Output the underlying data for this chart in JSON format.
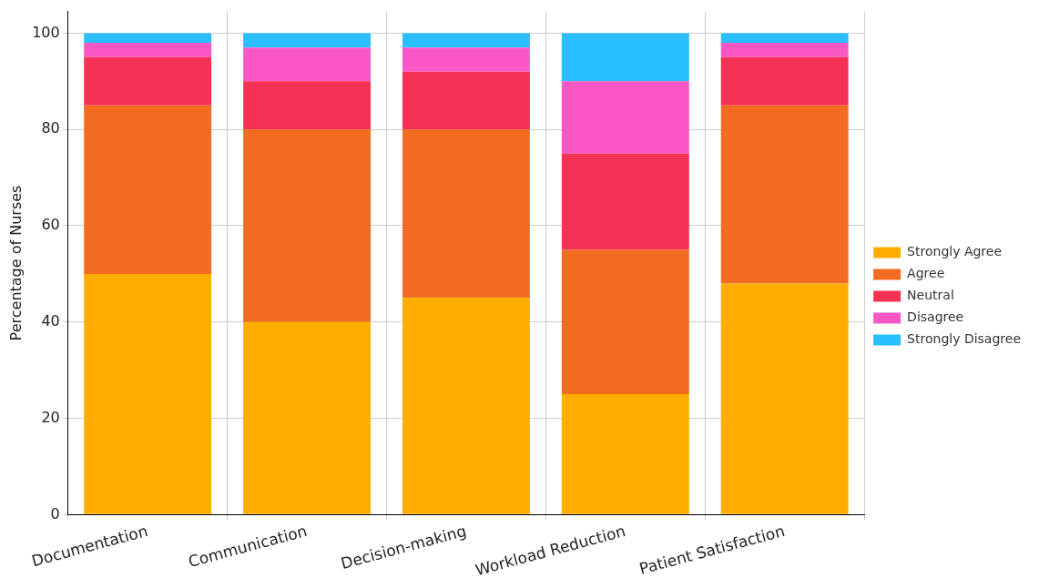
{
  "chart_data": {
    "type": "bar",
    "stacked": true,
    "ylabel": "Percentage of Nurses",
    "categories": [
      "Documentation",
      "Communication",
      "Decision-making",
      "Workload Reduction",
      "Patient Satisfaction"
    ],
    "series": [
      {
        "name": "Strongly Agree",
        "color": "#ffae00",
        "values": [
          50,
          40,
          45,
          25,
          48
        ]
      },
      {
        "name": "Agree",
        "color": "#f26b21",
        "values": [
          35,
          40,
          35,
          30,
          37
        ]
      },
      {
        "name": "Neutral",
        "color": "#f53155",
        "values": [
          10,
          10,
          12,
          20,
          10
        ]
      },
      {
        "name": "Disagree",
        "color": "#f957c4",
        "values": [
          3,
          7,
          5,
          15,
          3
        ]
      },
      {
        "name": "Strongly Disagree",
        "color": "#29bffe",
        "values": [
          2,
          3,
          3,
          10,
          2
        ]
      }
    ],
    "ylim": [
      0,
      104.5
    ],
    "yticks": [
      0,
      20,
      40,
      60,
      80,
      100
    ],
    "grid": true,
    "legend": "right"
  }
}
